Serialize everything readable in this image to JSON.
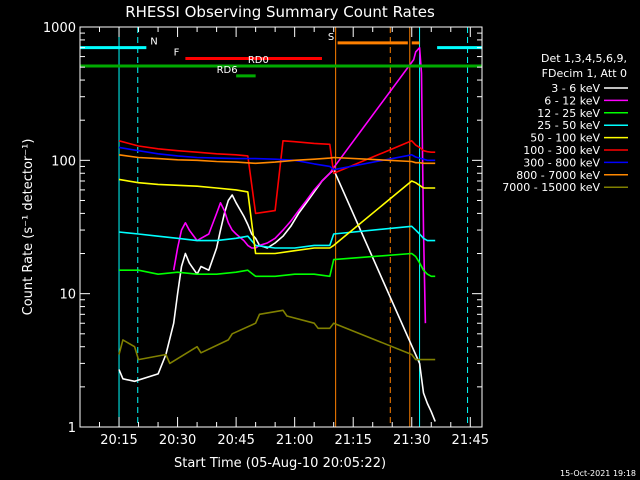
{
  "header": {
    "title": "RHESSI Observing Summary Count Rates",
    "footer_stamp": "15-Oct-2021 19:18"
  },
  "legend": {
    "header_lines": [
      "Det 1,3,4,5,6,9,",
      "FDecim 1, Att 0"
    ]
  },
  "chart_data": {
    "type": "line",
    "title": "RHESSI Observing Summary Count Rates",
    "xlabel": "Start Time (05-Aug-10 20:05:22)",
    "ylabel": "Count Rate (s⁻¹ detector⁻¹)",
    "y_scale": "log",
    "ylim": [
      1,
      1000
    ],
    "y_ticks": [
      1,
      10,
      100,
      1000
    ],
    "y_tick_labels": [
      "1",
      "10",
      "100",
      "1000"
    ],
    "xlim_min": [
      0,
      103
    ],
    "x_ticks_min": [
      10,
      25,
      40,
      55,
      70,
      85,
      100
    ],
    "x_tick_labels": [
      "20:15",
      "20:30",
      "20:45",
      "21:00",
      "21:15",
      "21:30",
      "21:45"
    ],
    "grid": false,
    "legend_position": "right",
    "series": [
      {
        "name": "3 - 6 keV",
        "color": "#ffffff",
        "x": [
          10,
          11,
          14,
          20,
          22,
          24,
          25,
          26,
          27,
          28,
          30,
          31,
          33,
          35,
          36,
          37,
          38,
          39,
          40,
          42,
          43,
          44,
          45,
          46,
          48,
          50,
          52,
          54,
          56,
          58,
          60,
          62,
          64,
          65,
          87,
          88,
          89,
          90,
          91
        ],
        "y": [
          2.7,
          2.3,
          2.2,
          2.5,
          3.5,
          6,
          10,
          16,
          20,
          17,
          14,
          16,
          15,
          22,
          30,
          40,
          50,
          55,
          48,
          38,
          33,
          28,
          26,
          23,
          22,
          24,
          27,
          32,
          40,
          48,
          58,
          70,
          80,
          85,
          3,
          1.8,
          1.5,
          1.3,
          1.1
        ]
      },
      {
        "name": "6 - 12 keV",
        "color": "#ff00ff",
        "x": [
          24,
          25,
          26,
          27,
          28,
          30,
          31,
          33,
          35,
          36,
          37,
          38,
          39,
          40,
          42,
          43,
          44,
          45,
          46,
          48,
          50,
          52,
          54,
          56,
          58,
          60,
          62,
          64,
          65,
          85.5,
          86,
          87,
          87.5,
          88,
          88.5
        ],
        "y": [
          15,
          22,
          30,
          34,
          30,
          25,
          26,
          28,
          40,
          48,
          42,
          34,
          30,
          28,
          25,
          23,
          22,
          22,
          23,
          24,
          26,
          30,
          35,
          42,
          50,
          60,
          70,
          80,
          88,
          570,
          650,
          700,
          450,
          30,
          6
        ]
      },
      {
        "name": "12 - 25 keV",
        "color": "#00ff00",
        "x": [
          10,
          15,
          20,
          25,
          30,
          35,
          40,
          43,
          45,
          50,
          55,
          60,
          64,
          65,
          85,
          86,
          87,
          88,
          89,
          90,
          91
        ],
        "y": [
          15,
          15,
          14,
          14.5,
          14,
          14,
          14.5,
          15,
          13.5,
          13.5,
          14,
          14,
          13.5,
          18,
          20,
          19,
          17,
          15,
          14,
          13.5,
          13.5
        ]
      },
      {
        "name": "25 - 50 keV",
        "color": "#00ffff",
        "x": [
          10,
          15,
          20,
          25,
          30,
          35,
          40,
          43,
          45,
          50,
          55,
          60,
          64,
          65,
          85,
          86,
          87,
          88,
          89,
          90,
          91
        ],
        "y": [
          29,
          28,
          27,
          26,
          25,
          25,
          26,
          27,
          23,
          22,
          22,
          23,
          23,
          28,
          32,
          30,
          28,
          26,
          25,
          25,
          25
        ]
      },
      {
        "name": "50 - 100 keV",
        "color": "#ffff00",
        "x": [
          10,
          15,
          20,
          25,
          30,
          35,
          40,
          43,
          45,
          50,
          55,
          60,
          64,
          65,
          85,
          86,
          87,
          88,
          89,
          90,
          91
        ],
        "y": [
          72,
          68,
          66,
          65,
          64,
          62,
          60,
          58,
          20,
          20,
          21,
          22,
          22,
          23,
          70,
          68,
          65,
          62,
          62,
          62,
          62
        ]
      },
      {
        "name": "100 - 300 keV",
        "color": "#ff0000",
        "x": [
          10,
          15,
          20,
          25,
          30,
          35,
          40,
          43,
          45,
          50,
          52,
          55,
          60,
          64,
          65,
          85,
          86,
          87,
          88,
          89,
          90,
          91
        ],
        "y": [
          140,
          128,
          122,
          118,
          115,
          112,
          110,
          108,
          40,
          42,
          140,
          138,
          134,
          132,
          80,
          140,
          130,
          125,
          118,
          116,
          115,
          115
        ]
      },
      {
        "name": "300 - 800 keV",
        "color": "#0000ff",
        "x": [
          10,
          15,
          20,
          25,
          30,
          35,
          40,
          45,
          50,
          55,
          60,
          64,
          65,
          85,
          86,
          87,
          88,
          89,
          90,
          91
        ],
        "y": [
          125,
          118,
          112,
          108,
          105,
          104,
          103,
          103,
          102,
          100,
          94,
          90,
          85,
          110,
          106,
          104,
          102,
          100,
          100,
          100
        ]
      },
      {
        "name": "800 - 7000 keV",
        "color": "#ff8800",
        "x": [
          10,
          15,
          20,
          25,
          30,
          35,
          40,
          45,
          50,
          55,
          60,
          64,
          65,
          85,
          86,
          87,
          88,
          89,
          90,
          91
        ],
        "y": [
          110,
          105,
          103,
          101,
          100,
          98,
          97,
          95,
          97,
          100,
          102,
          104,
          105,
          98,
          96,
          96,
          95,
          95,
          95,
          95
        ]
      },
      {
        "name": "7000 - 15000 keV",
        "color": "#808000",
        "x": [
          10,
          11,
          14,
          15,
          22,
          23,
          30,
          31,
          38,
          39,
          45,
          46,
          52,
          53,
          60,
          61,
          64,
          65,
          85,
          86,
          91
        ],
        "y": [
          3.5,
          4.5,
          4,
          3.2,
          3.5,
          3,
          4,
          3.6,
          4.5,
          5,
          6,
          7,
          7.5,
          6.8,
          6,
          5.5,
          5.5,
          6,
          3.5,
          3.2,
          3.2
        ]
      }
    ],
    "flags": [
      {
        "label": "N",
        "color": "#00ffff",
        "segments": [
          [
            0,
            17
          ],
          [
            91.5,
            103
          ]
        ],
        "y": 700,
        "label_x": 18
      },
      {
        "label": "S",
        "color": "#ff8000",
        "segments": [
          [
            66,
            84
          ],
          [
            85,
            87
          ]
        ],
        "y": 760,
        "label_x": 63.5
      },
      {
        "label": "F",
        "color": "#ff0000",
        "segments": [
          [
            27,
            62
          ]
        ],
        "y": 580,
        "label_x": 24
      },
      {
        "label": "RD0",
        "color": "#00aa00",
        "segments": [
          [
            0,
            103
          ]
        ],
        "y": 510,
        "label_x": 43
      },
      {
        "label": "RD6",
        "color": "#00aa00",
        "segments": [
          [
            40,
            45
          ]
        ],
        "y": 430,
        "label_x": 35
      }
    ],
    "vlines": [
      {
        "x": 0,
        "color": "#00ffff",
        "dashed": false
      },
      {
        "x": 10,
        "color": "#00ffff",
        "dashed": false
      },
      {
        "x": 14.8,
        "color": "#00ffff",
        "dashed": true
      },
      {
        "x": 65.5,
        "color": "#ff8000",
        "dashed": false
      },
      {
        "x": 79.5,
        "color": "#ff8000",
        "dashed": true
      },
      {
        "x": 84.5,
        "color": "#ff8000",
        "dashed": false
      },
      {
        "x": 87,
        "color": "#00ffff",
        "dashed": false
      },
      {
        "x": 99.3,
        "color": "#00ffff",
        "dashed": true
      }
    ]
  }
}
